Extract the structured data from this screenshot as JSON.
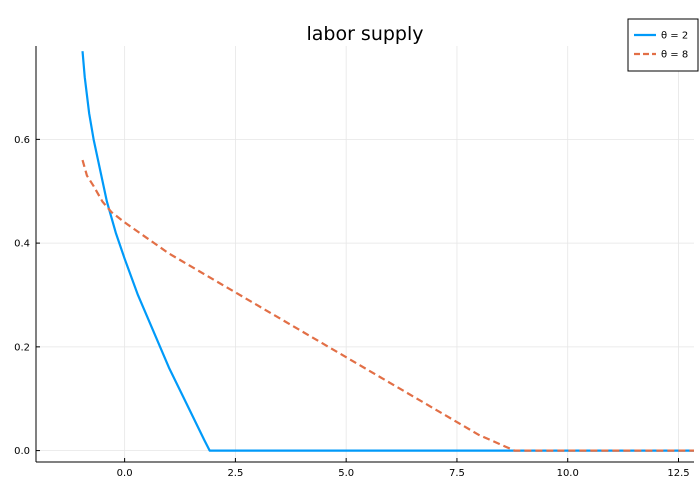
{
  "chart_data": {
    "type": "line",
    "title": "labor supply",
    "xlabel": "",
    "ylabel": "",
    "xlim": [
      -2.0,
      12.85
    ],
    "ylim": [
      -0.022,
      0.78
    ],
    "xticks": [
      0.0,
      2.5,
      5.0,
      7.5,
      10.0,
      12.5
    ],
    "xtick_labels": [
      "0.0",
      "2.5",
      "5.0",
      "7.5",
      "10.0",
      "12.5"
    ],
    "yticks": [
      0.0,
      0.2,
      0.4,
      0.6
    ],
    "ytick_labels": [
      "0.0",
      "0.2",
      "0.4",
      "0.6"
    ],
    "grid": true,
    "legend_position": "top-right",
    "series": [
      {
        "name": "θ = 2",
        "color": "#009af9",
        "line_style": "solid",
        "x": [
          -0.95,
          -0.9,
          -0.8,
          -0.7,
          -0.6,
          -0.5,
          -0.4,
          -0.2,
          0.0,
          0.3,
          0.6,
          1.0,
          1.4,
          1.8,
          1.92,
          2.1,
          5.0,
          10.0,
          12.85
        ],
        "y": [
          0.77,
          0.72,
          0.65,
          0.6,
          0.56,
          0.52,
          0.48,
          0.42,
          0.37,
          0.3,
          0.24,
          0.16,
          0.09,
          0.02,
          0.0,
          0.0,
          0.0,
          0.0,
          0.0
        ]
      },
      {
        "name": "θ = 8",
        "color": "#e26f46",
        "line_style": "dashed",
        "x": [
          -0.95,
          -0.85,
          -0.7,
          -0.5,
          -0.3,
          0.0,
          0.5,
          1.0,
          2.0,
          3.0,
          4.0,
          5.0,
          6.0,
          7.0,
          8.0,
          8.8,
          10.0,
          12.85
        ],
        "y": [
          0.56,
          0.53,
          0.51,
          0.48,
          0.46,
          0.44,
          0.41,
          0.38,
          0.33,
          0.28,
          0.23,
          0.18,
          0.13,
          0.08,
          0.03,
          0.0,
          0.0,
          0.0
        ]
      }
    ]
  }
}
